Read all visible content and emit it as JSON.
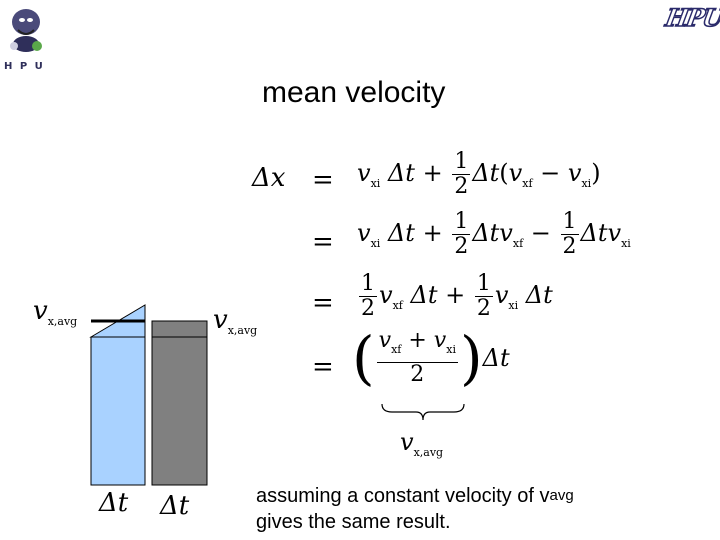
{
  "title": "mean velocity",
  "logos": {
    "left_text": "H P U",
    "right_text": "HPU"
  },
  "diagram": {
    "left_label": "v",
    "left_label_sub": "x,avg",
    "right_label": "v",
    "right_label_sub": "x,avg",
    "left_width_label": "Δt",
    "right_width_label": "Δt",
    "colors": {
      "left_bar": "#a9d2ff",
      "right_bar": "#808080"
    }
  },
  "equations": {
    "lhs": "Δx",
    "eq": "=",
    "v": "v",
    "dt": "Δt",
    "t": "t",
    "plus": "+",
    "minus": "−",
    "one": "1",
    "two": "2",
    "delta": "Δ",
    "lparen": "(",
    "rparen": ")",
    "xi": "xi",
    "xf": "xf",
    "brace_label": "v",
    "brace_label_sub": "x,avg"
  },
  "caption": {
    "line1_pre": "assuming a constant velocity of v",
    "line1_sub": "avg",
    "line2": "gives the same result."
  }
}
